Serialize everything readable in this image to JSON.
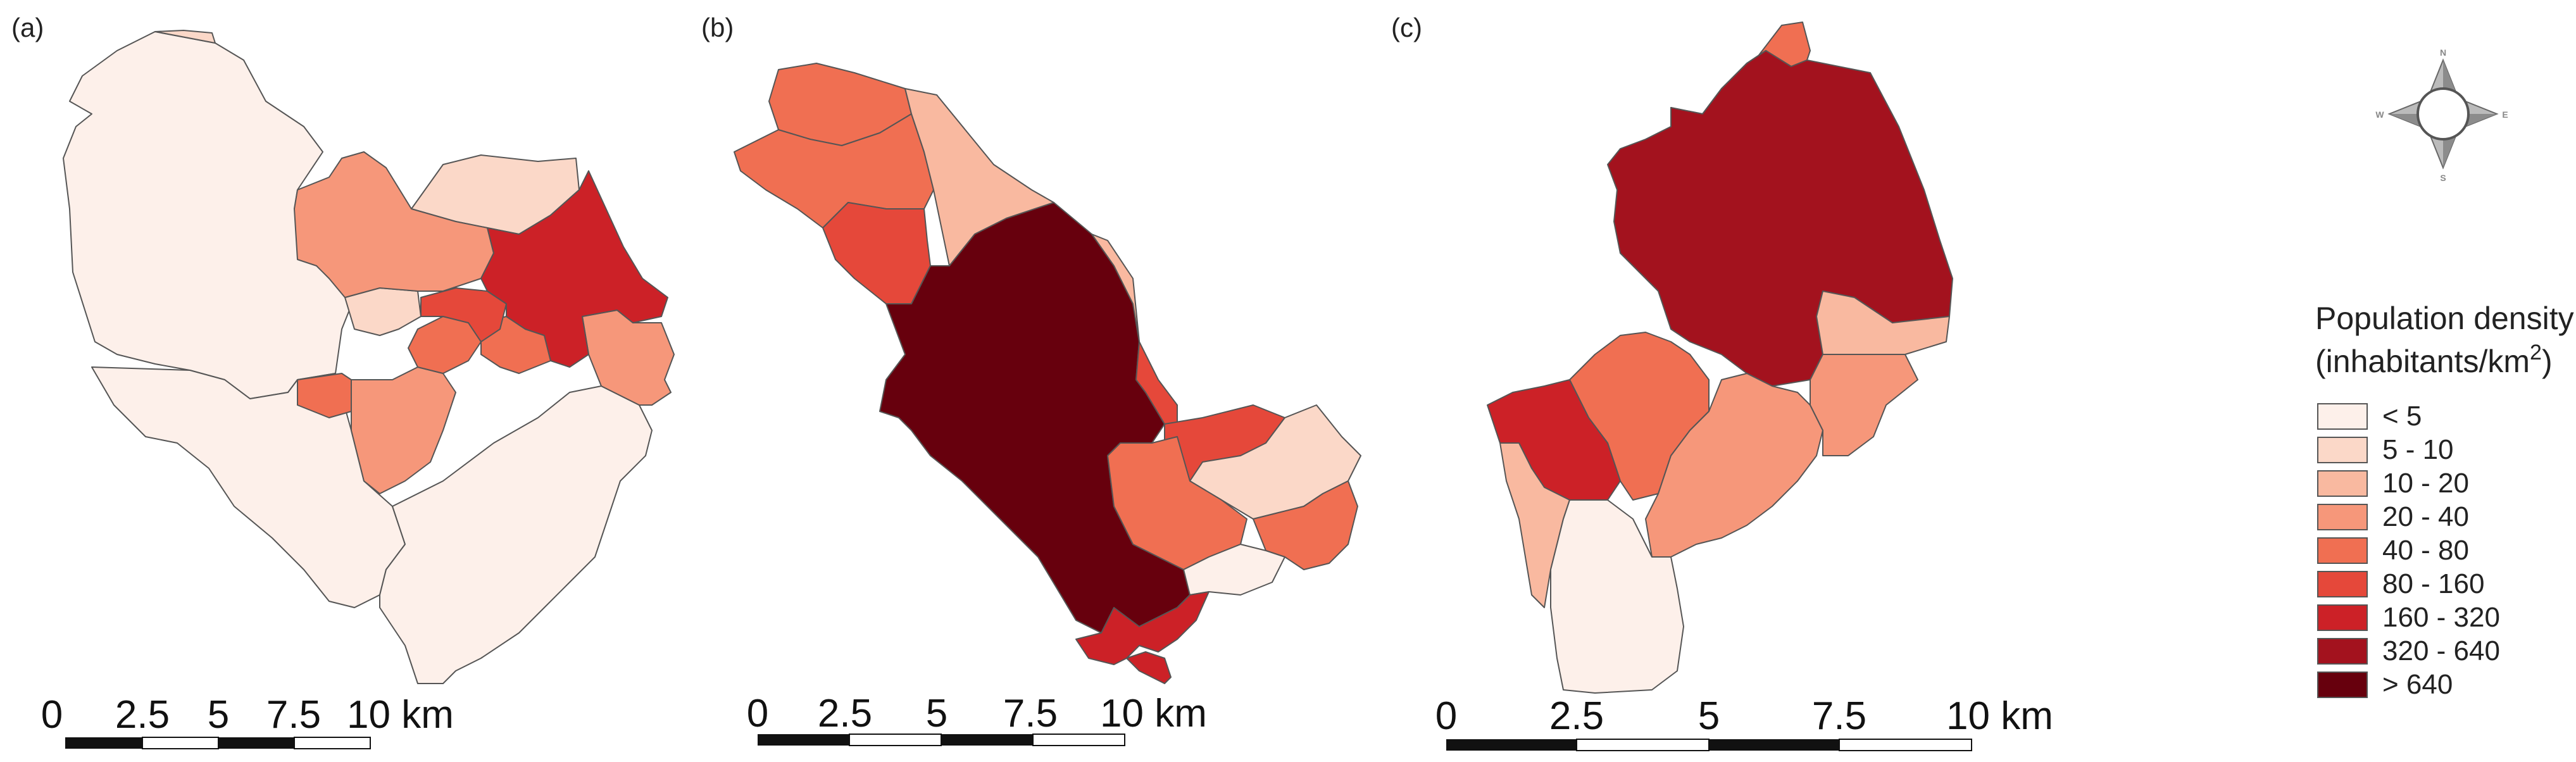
{
  "panels": [
    {
      "label": "(a)",
      "scale": {
        "ticks": [
          "0",
          "2.5",
          "5",
          "7.5",
          "10 km"
        ]
      }
    },
    {
      "label": "(b)",
      "scale": {
        "ticks": [
          "0",
          "2.5",
          "5",
          "7.5",
          "10 km"
        ]
      }
    },
    {
      "label": "(c)",
      "scale": {
        "ticks": [
          "0",
          "2.5",
          "5",
          "7.5",
          "10 km"
        ]
      }
    }
  ],
  "legend": {
    "title_line1": "Population density",
    "title_line2": "(inhabitants/km",
    "title_sup": "2",
    "title_close": ")",
    "classes": [
      {
        "label": "< 5",
        "color": "#fdf0ea"
      },
      {
        "label": "5 - 10",
        "color": "#fbd8c8"
      },
      {
        "label": "10 - 20",
        "color": "#f9b9a0"
      },
      {
        "label": "20 - 40",
        "color": "#f6977a"
      },
      {
        "label": "40 - 80",
        "color": "#f06f52"
      },
      {
        "label": "80 - 160",
        "color": "#e5483a"
      },
      {
        "label": "160 - 320",
        "color": "#cc2127"
      },
      {
        "label": "320 - 640",
        "color": "#a3121e"
      },
      {
        "label": "> 640",
        "color": "#67000d"
      }
    ]
  },
  "compass": {
    "n": "N",
    "s": "S",
    "e": "E",
    "w": "W"
  }
}
